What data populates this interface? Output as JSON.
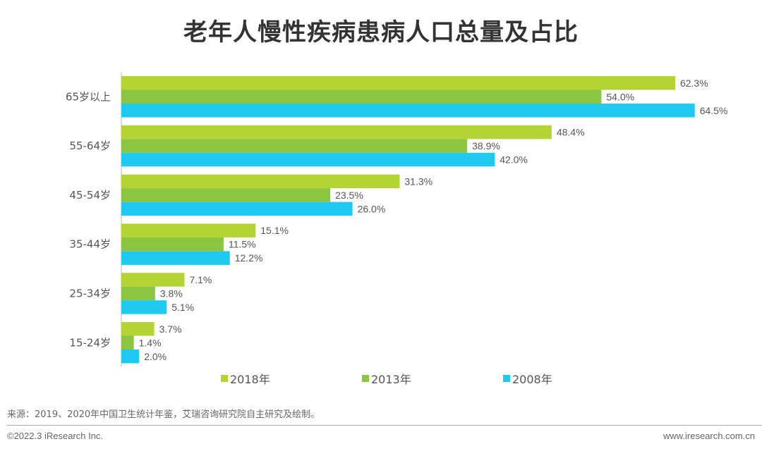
{
  "chart_data": {
    "type": "bar",
    "orientation": "horizontal",
    "title": "老年人慢性疾病患病人口总量及占比",
    "categories": [
      "65岁以上",
      "55-64岁",
      "45-54岁",
      "35-44岁",
      "25-34岁",
      "15-24岁"
    ],
    "series": [
      {
        "name": "2018年",
        "color": "#B4D334",
        "values": [
          62.3,
          48.4,
          31.3,
          15.1,
          7.1,
          3.7
        ],
        "labels": [
          "62.3%",
          "48.4%",
          "31.3%",
          "15.1%",
          "7.1%",
          "3.7%"
        ]
      },
      {
        "name": "2013年",
        "color": "#8CC540",
        "values": [
          54.0,
          38.9,
          23.5,
          11.5,
          3.8,
          1.4
        ],
        "labels": [
          "54.0%",
          "38.9%",
          "23.5%",
          "11.5%",
          "3.8%",
          "1.4%"
        ]
      },
      {
        "name": "2008年",
        "color": "#1FC9F0",
        "values": [
          64.5,
          42.0,
          26.0,
          12.2,
          5.1,
          2.0
        ],
        "labels": [
          "64.5%",
          "42.0%",
          "26.0%",
          "12.2%",
          "5.1%",
          "2.0%"
        ]
      }
    ],
    "unit": "%",
    "grid": false,
    "legend_position": "bottom"
  },
  "footer": {
    "source": "来源：2019、2020年中国卫生统计年鉴，艾瑞咨询研究院自主研究及绘制。",
    "copyright": "©2022.3 iResearch Inc.",
    "website": "www.iresearch.com.cn"
  }
}
